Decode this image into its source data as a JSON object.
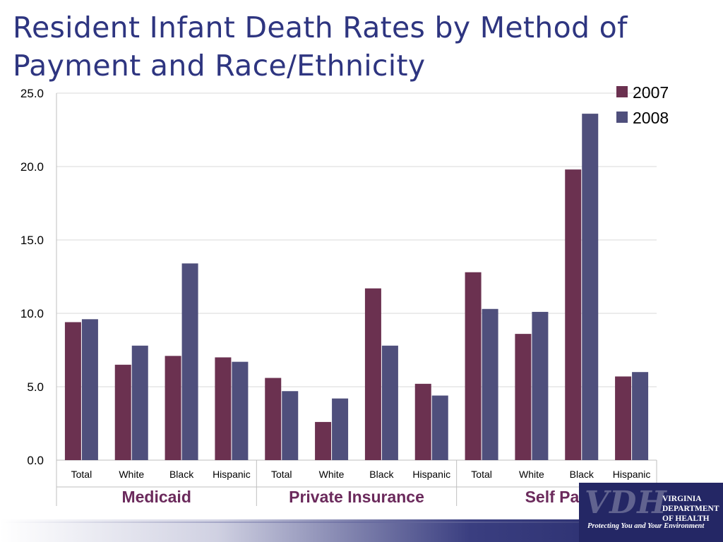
{
  "slide": {
    "title": "Resident Infant Death Rates by Method of Payment and Race/Ethnicity"
  },
  "logo": {
    "mark": "VDH",
    "name_lines": [
      "VIRGINIA",
      "DEPARTMENT",
      "OF HEALTH"
    ],
    "tagline": "Protecting You and Your Environment"
  },
  "chart_data": {
    "type": "bar",
    "title": "Resident Infant Death Rates by Method of Payment and Race/Ethnicity",
    "xlabel": "",
    "ylabel": "",
    "ylim": [
      0,
      25
    ],
    "yticks": [
      "0.0",
      "5.0",
      "10.0",
      "15.0",
      "20.0",
      "25.0"
    ],
    "grid": true,
    "legend_position": "top-right",
    "groups": [
      "Medicaid",
      "Private Insurance",
      "Self Pay"
    ],
    "categories": [
      "Total",
      "White",
      "Black",
      "Hispanic",
      "Total",
      "White",
      "Black",
      "Hispanic",
      "Total",
      "White",
      "Black",
      "Hispanic"
    ],
    "series": [
      {
        "name": "2007",
        "color": "#6b3150",
        "values": [
          9.4,
          6.5,
          7.1,
          7.0,
          5.6,
          2.6,
          11.7,
          5.2,
          12.8,
          8.6,
          19.8,
          5.7
        ]
      },
      {
        "name": "2008",
        "color": "#4f4f7c",
        "values": [
          9.6,
          7.8,
          13.4,
          6.7,
          4.7,
          4.2,
          7.8,
          4.4,
          10.3,
          10.1,
          23.6,
          6.0
        ]
      }
    ]
  }
}
